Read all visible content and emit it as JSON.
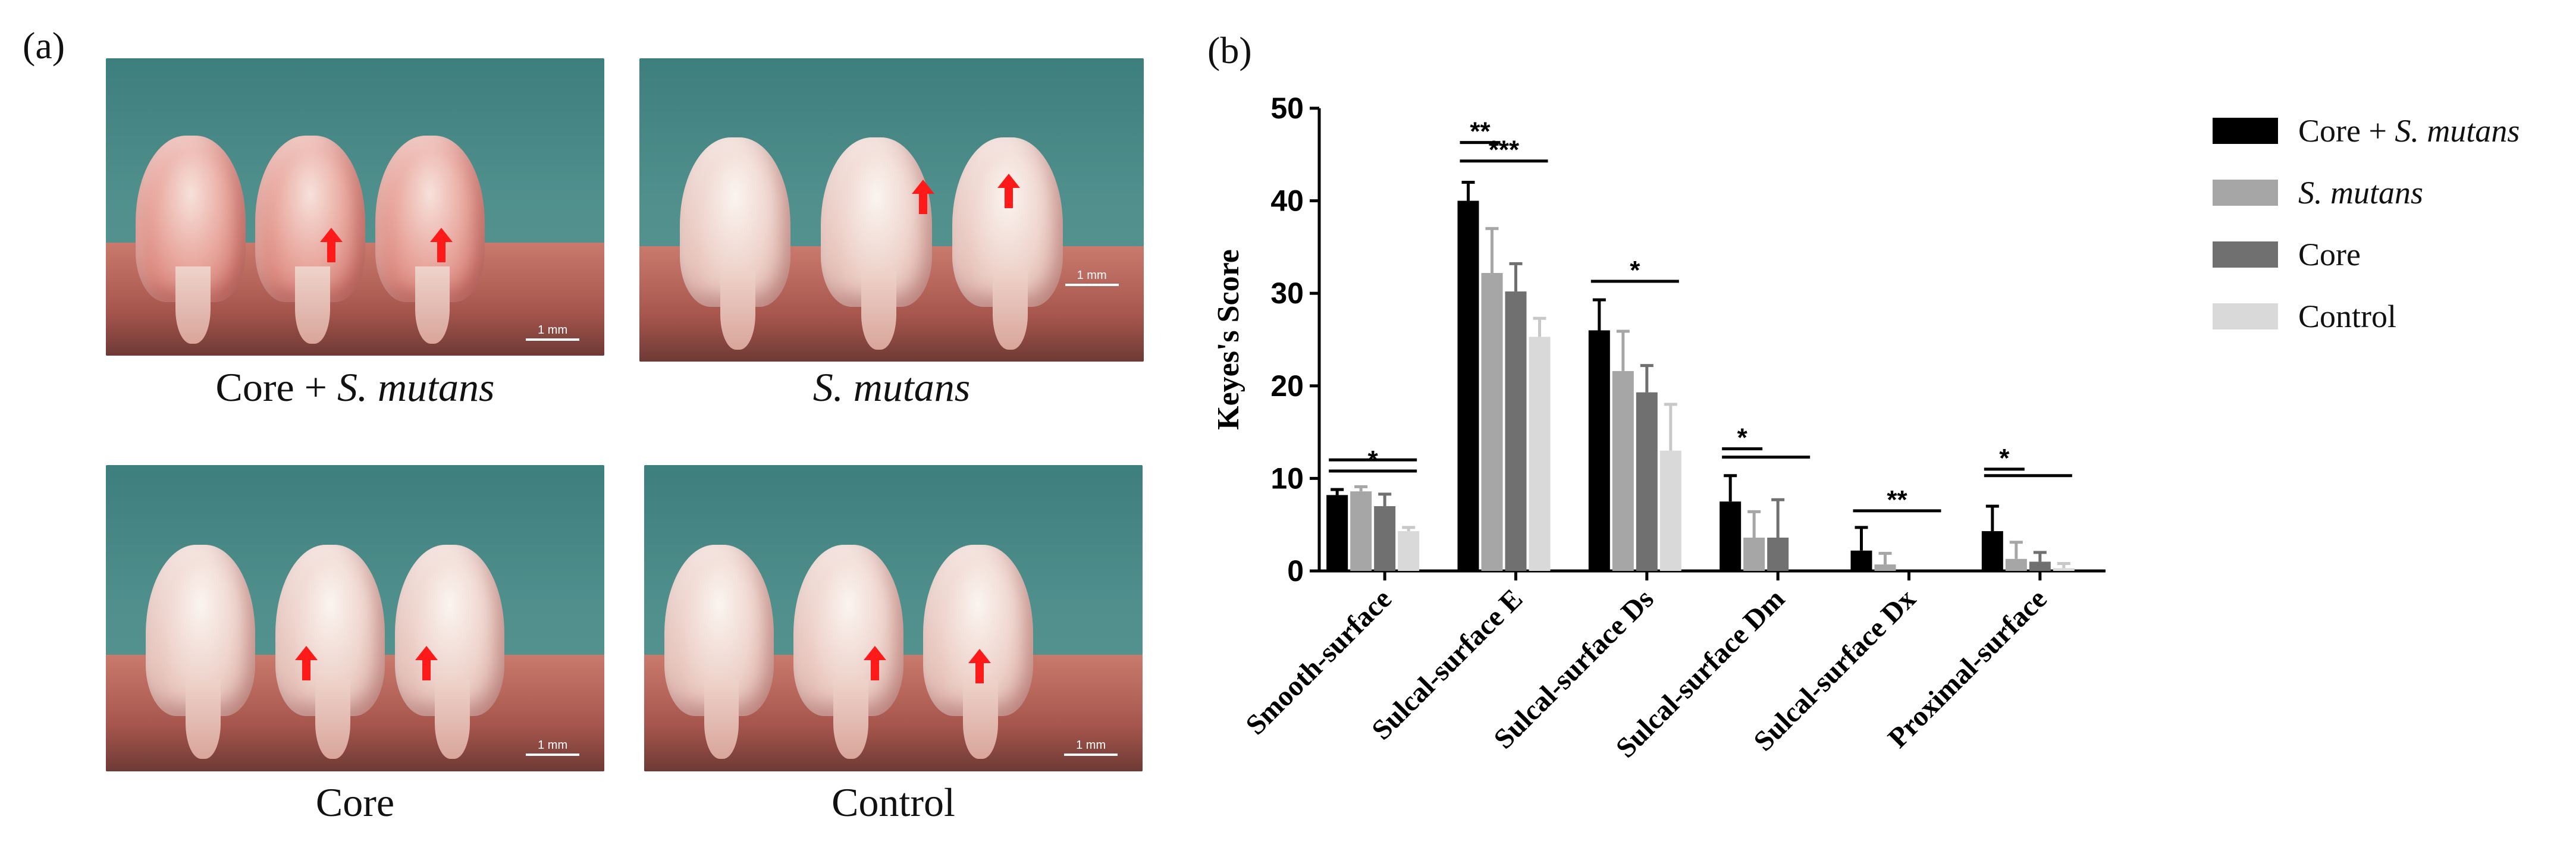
{
  "panel_a": {
    "label": "(a)",
    "photos": [
      {
        "caption_plain": "Core + ",
        "caption_italic": "S. mutans",
        "scale": "1 mm"
      },
      {
        "caption_plain": "",
        "caption_italic": "S. mutans",
        "scale": "1 mm"
      },
      {
        "caption_plain": "Core",
        "caption_italic": "",
        "scale": "1 mm"
      },
      {
        "caption_plain": "Control",
        "caption_italic": "",
        "scale": "1 mm"
      }
    ]
  },
  "panel_b": {
    "label": "(b)"
  },
  "chart_data": {
    "type": "bar",
    "title": "",
    "xlabel": "",
    "ylabel": "Keyes's Score",
    "ylim": [
      0,
      50
    ],
    "yticks": [
      0,
      10,
      20,
      30,
      40,
      50
    ],
    "categories": [
      "Smooth-surface",
      "Sulcal-surface E",
      "Sulcal-surface Ds",
      "Sulcal-surface Dm",
      "Sulcal-surface Dx",
      "Proximal-surface"
    ],
    "series": [
      {
        "name": "Core + S. mutans",
        "name_plain": "Core + ",
        "name_italic": "S. mutans",
        "color": "#000000",
        "values": [
          8.2,
          40.0,
          26.0,
          7.5,
          2.2,
          4.3
        ],
        "errors": [
          0.6,
          2.0,
          3.3,
          2.8,
          2.5,
          2.7
        ]
      },
      {
        "name": "S. mutans",
        "name_plain": "",
        "name_italic": "S. mutans",
        "color": "#a6a6a6",
        "values": [
          8.6,
          32.2,
          21.6,
          3.6,
          0.7,
          1.3
        ],
        "errors": [
          0.5,
          4.8,
          4.3,
          2.8,
          1.2,
          1.8
        ]
      },
      {
        "name": "Core",
        "name_plain": "Core",
        "name_italic": "",
        "color": "#707070",
        "values": [
          7.0,
          30.2,
          19.3,
          3.6,
          0.0,
          1.0
        ],
        "errors": [
          1.3,
          3.0,
          2.9,
          4.1,
          0.0,
          1.0
        ]
      },
      {
        "name": "Control",
        "name_plain": "Control",
        "name_italic": "",
        "color": "#d9d9d9",
        "values": [
          4.3,
          25.3,
          13.0,
          0.0,
          0.0,
          0.3
        ],
        "errors": [
          0.4,
          2.0,
          5.0,
          0.0,
          0.0,
          0.5
        ]
      }
    ],
    "significance": [
      {
        "category": 0,
        "from_series": 0,
        "to_series": 3,
        "label": "*",
        "level": 10.8
      },
      {
        "category": 0,
        "from_series": 0,
        "to_series": 3,
        "label": "",
        "level": 12.0
      },
      {
        "category": 1,
        "from_series": 0,
        "to_series": 1,
        "label": "**",
        "level": 46.3
      },
      {
        "category": 1,
        "from_series": 0,
        "to_series": 3,
        "label": "***",
        "level": 44.3
      },
      {
        "category": 2,
        "from_series": 0,
        "to_series": 3,
        "label": "*",
        "level": 31.3
      },
      {
        "category": 3,
        "from_series": 0,
        "to_series": 1,
        "label": "*",
        "level": 13.2
      },
      {
        "category": 3,
        "from_series": 0,
        "to_series": 3,
        "label": "",
        "level": 12.3
      },
      {
        "category": 4,
        "from_series": 0,
        "to_series": 3,
        "label": "**",
        "level": 6.5
      },
      {
        "category": 5,
        "from_series": 0,
        "to_series": 1,
        "label": "*",
        "level": 11.0
      },
      {
        "category": 5,
        "from_series": 0,
        "to_series": 3,
        "label": "",
        "level": 10.3
      }
    ]
  }
}
